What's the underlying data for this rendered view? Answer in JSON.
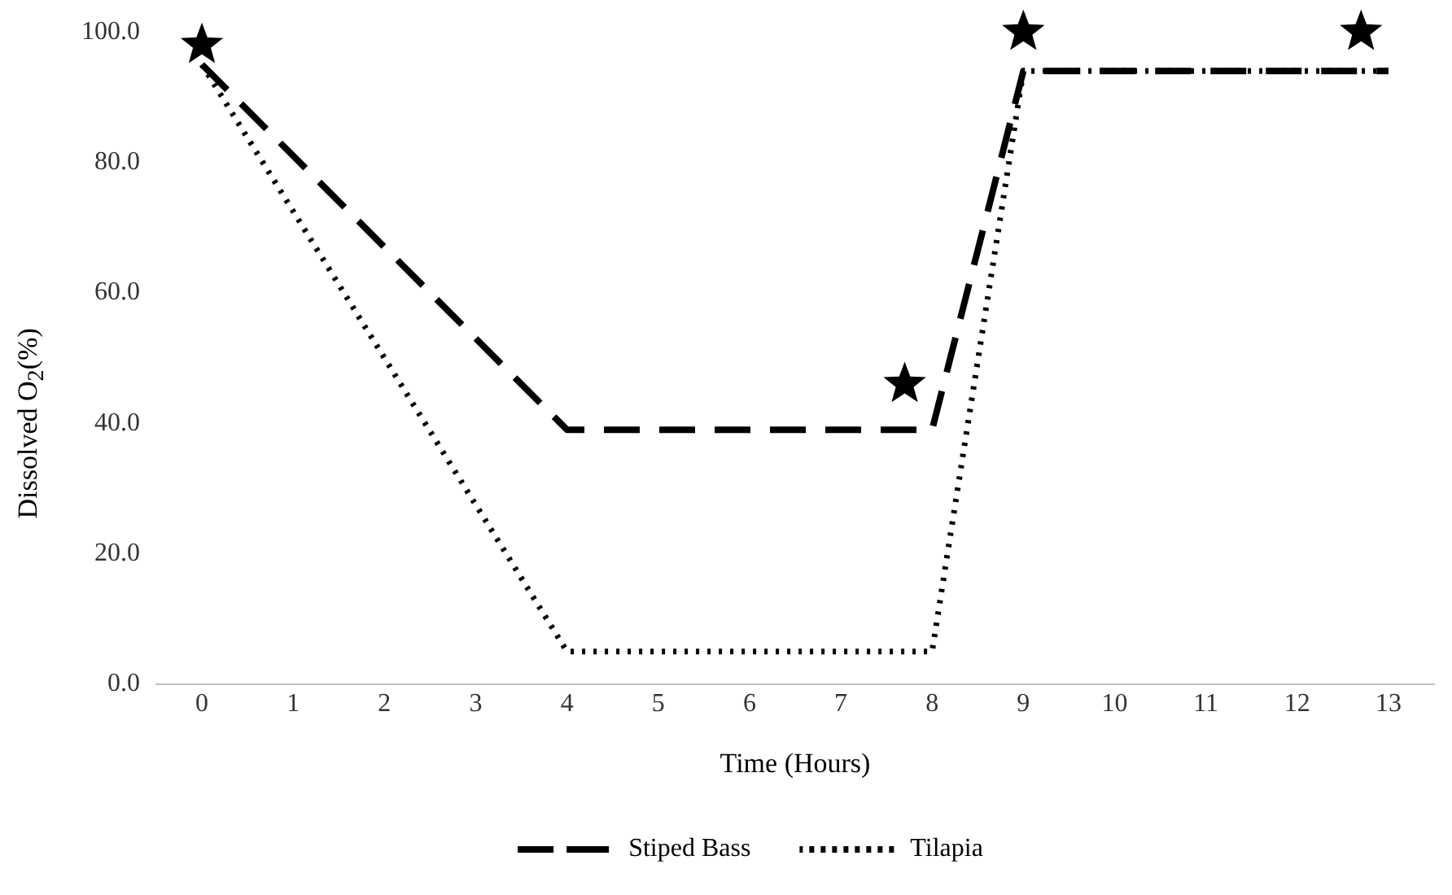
{
  "chart_data": {
    "type": "line",
    "xlabel": "Time (Hours)",
    "ylabel": "Dissolved O$_{2}$(%)",
    "xlim": [
      -0.5,
      13.5
    ],
    "xticks": [
      0,
      1,
      2,
      3,
      4,
      5,
      6,
      7,
      8,
      9,
      10,
      11,
      12,
      13
    ],
    "ylim": [
      0,
      100
    ],
    "yticks": [
      {
        "value": 0,
        "label": "0.0"
      },
      {
        "value": 20,
        "label": "20.0"
      },
      {
        "value": 40,
        "label": "40.0"
      },
      {
        "value": 60,
        "label": "60.0"
      },
      {
        "value": 80,
        "label": "80.0"
      },
      {
        "value": 100,
        "label": "100.0"
      }
    ],
    "grid": false,
    "legend": "bottom",
    "marker": "none",
    "series": [
      {
        "name": "Stiped Bass",
        "color": "#000000",
        "line_style": "dashed",
        "x": [
          0,
          4,
          8,
          9,
          13
        ],
        "values": [
          95,
          39,
          39,
          94,
          94
        ]
      },
      {
        "name": "Tilapia",
        "color": "#000000",
        "line_style": "dotted",
        "x": [
          0,
          4,
          8,
          9,
          13
        ],
        "values": [
          95,
          5,
          5,
          94,
          94
        ]
      },
      {
        "type": "scatter",
        "marker": "star",
        "color": "#000000",
        "x": [
          0,
          7.7,
          9,
          12.7
        ],
        "values": [
          98,
          46,
          100,
          100
        ]
      }
    ]
  }
}
